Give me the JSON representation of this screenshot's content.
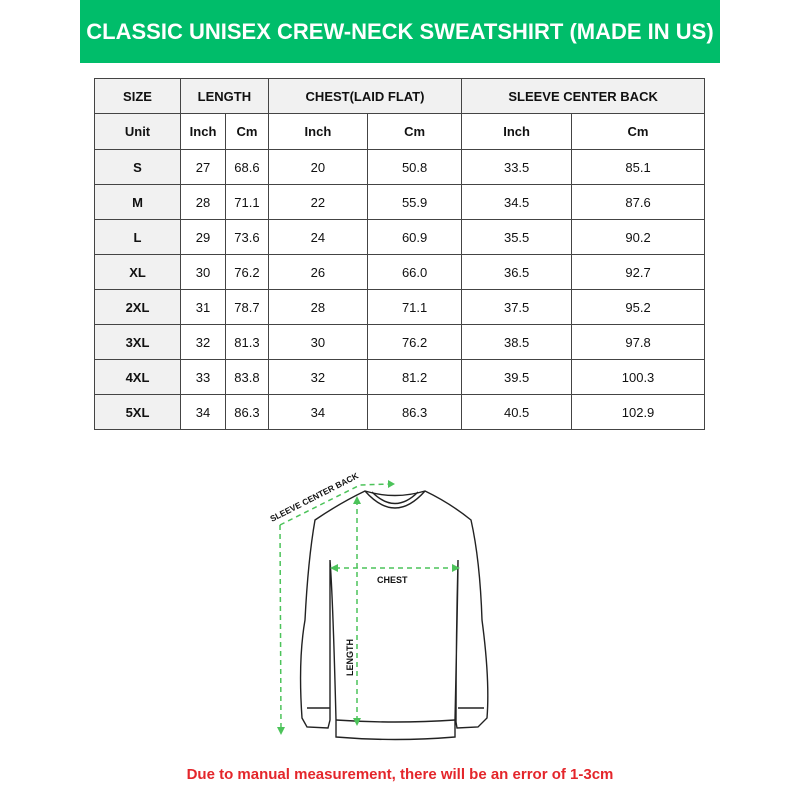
{
  "title": "CLASSIC UNISEX CREW-NECK SWEATSHIRT (MADE IN US)",
  "table": {
    "headers": [
      "SIZE",
      "LENGTH",
      "CHEST(LAID FLAT)",
      "SLEEVE CENTER BACK"
    ],
    "units": [
      "Unit",
      "Inch",
      "Cm",
      "Inch",
      "Cm",
      "Inch",
      "Cm"
    ],
    "rows": [
      [
        "S",
        "27",
        "68.6",
        "20",
        "50.8",
        "33.5",
        "85.1"
      ],
      [
        "M",
        "28",
        "71.1",
        "22",
        "55.9",
        "34.5",
        "87.6"
      ],
      [
        "L",
        "29",
        "73.6",
        "24",
        "60.9",
        "35.5",
        "90.2"
      ],
      [
        "XL",
        "30",
        "76.2",
        "26",
        "66.0",
        "36.5",
        "92.7"
      ],
      [
        "2XL",
        "31",
        "78.7",
        "28",
        "71.1",
        "37.5",
        "95.2"
      ],
      [
        "3XL",
        "32",
        "81.3",
        "30",
        "76.2",
        "38.5",
        "97.8"
      ],
      [
        "4XL",
        "33",
        "83.8",
        "32",
        "81.2",
        "39.5",
        "100.3"
      ],
      [
        "5XL",
        "34",
        "86.3",
        "34",
        "86.3",
        "40.5",
        "102.9"
      ]
    ]
  },
  "diagram": {
    "sleeve_label": "SLEEVE CENTER BACK",
    "chest_label": "CHEST",
    "length_label": "LENGTH",
    "accent_color": "#4cc35a"
  },
  "note": "Due to manual measurement, there will be an error of 1-3cm",
  "colors": {
    "banner": "#00bd6a",
    "note": "#e4262b"
  }
}
